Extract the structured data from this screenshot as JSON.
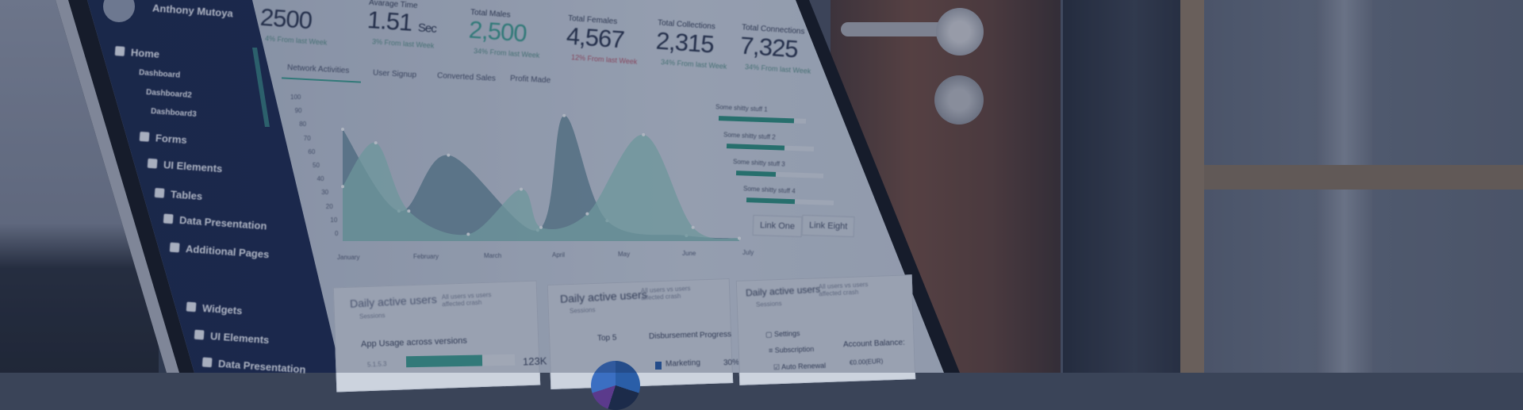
{
  "sidebar": {
    "user_name": "Anthony Mutoya",
    "items": [
      {
        "label": "Home",
        "icon": "home-icon"
      },
      {
        "label": "Dashboard",
        "sub": true
      },
      {
        "label": "Dashboard2",
        "sub": true
      },
      {
        "label": "Dashboard3",
        "sub": true
      },
      {
        "label": "Forms",
        "icon": "edit-icon"
      },
      {
        "label": "UI Elements",
        "icon": "home-icon"
      },
      {
        "label": "Tables",
        "icon": "home-icon"
      },
      {
        "label": "Data Presentation",
        "icon": "chart-icon"
      },
      {
        "label": "Additional Pages",
        "icon": "home-icon"
      },
      {
        "label": "Widgets",
        "icon": "home-icon"
      },
      {
        "label": "UI Elements",
        "icon": "home-icon"
      },
      {
        "label": "Data Presentation",
        "icon": "home-icon"
      }
    ]
  },
  "stats": [
    {
      "label": "",
      "value": "2500",
      "unit": "",
      "delta": "4% From last Week"
    },
    {
      "label": "Avarage Time",
      "value": "1.51",
      "unit": "Sec",
      "delta": "3% From last Week"
    },
    {
      "label": "Total Males",
      "value": "2,500",
      "unit": "",
      "delta": "34% From last Week"
    },
    {
      "label": "Total Females",
      "value": "4,567",
      "unit": "",
      "delta": "12% From last Week"
    },
    {
      "label": "Total Collections",
      "value": "2,315",
      "unit": "",
      "delta": "34% From last Week"
    },
    {
      "label": "Total Connections",
      "value": "7,325",
      "unit": "",
      "delta": "34% From last Week"
    }
  ],
  "tabs": [
    "Network Activities",
    "User Signup",
    "Converted Sales",
    "Profit Made"
  ],
  "active_tab": "Network Activities",
  "chart": {
    "type": "area",
    "x_labels": [
      "January",
      "February",
      "March",
      "April",
      "May",
      "June",
      "July"
    ],
    "y_ticks": [
      "100",
      "90",
      "80",
      "70",
      "60",
      "50",
      "40",
      "30",
      "20",
      "10",
      "0"
    ],
    "ylim": [
      0,
      100
    ],
    "series": [
      {
        "color": "#5f8496",
        "points": [
          [
            0,
            82
          ],
          [
            0.85,
            22
          ],
          [
            1.6,
            63
          ],
          [
            2.95,
            8
          ],
          [
            3.35,
            92
          ],
          [
            4.0,
            15
          ],
          [
            5.2,
            4
          ],
          [
            6,
            2
          ]
        ]
      },
      {
        "color": "#8fc4c0",
        "points": [
          [
            0,
            40
          ],
          [
            0.5,
            72
          ],
          [
            1.0,
            22
          ],
          [
            1.9,
            5
          ],
          [
            2.7,
            38
          ],
          [
            3.0,
            10
          ],
          [
            3.7,
            20
          ],
          [
            4.55,
            78
          ],
          [
            5.3,
            10
          ],
          [
            6,
            2
          ]
        ]
      }
    ]
  },
  "progress": [
    {
      "label": "Some shitty stuff 1",
      "value": 0.86
    },
    {
      "label": "Some shitty stuff 2",
      "value": 0.66
    },
    {
      "label": "Some shitty stuff 3",
      "value": 0.45
    },
    {
      "label": "Some shitty stuff 4",
      "value": 0.55
    }
  ],
  "links": [
    "Link One",
    "Link Eight"
  ],
  "panels": [
    {
      "title": "Daily active users",
      "subtitle": "Sessions",
      "note": "All users vs users affected crash",
      "section": "App Usage across versions",
      "version": "5.1.5.3",
      "version_value": "123K",
      "version_fill": 0.7
    },
    {
      "title": "Daily active users",
      "subtitle": "Sessions",
      "note": "All users vs users affected crash",
      "headers": [
        "Top 5",
        "Disbursement",
        "Progress"
      ],
      "row": {
        "label": "Marketing",
        "value": "30%"
      }
    },
    {
      "title": "Daily active users",
      "subtitle": "Sessions",
      "note": "All users vs users affected crash",
      "menu": [
        "Settings",
        "Subscription",
        "Auto Renewal"
      ],
      "balance_label": "Account Balance:",
      "balance": "€0.00(EUR)"
    }
  ],
  "colors": {
    "sidebar": "#1d2a4f",
    "accent": "#3d9c90",
    "negative": "#b0556a"
  }
}
